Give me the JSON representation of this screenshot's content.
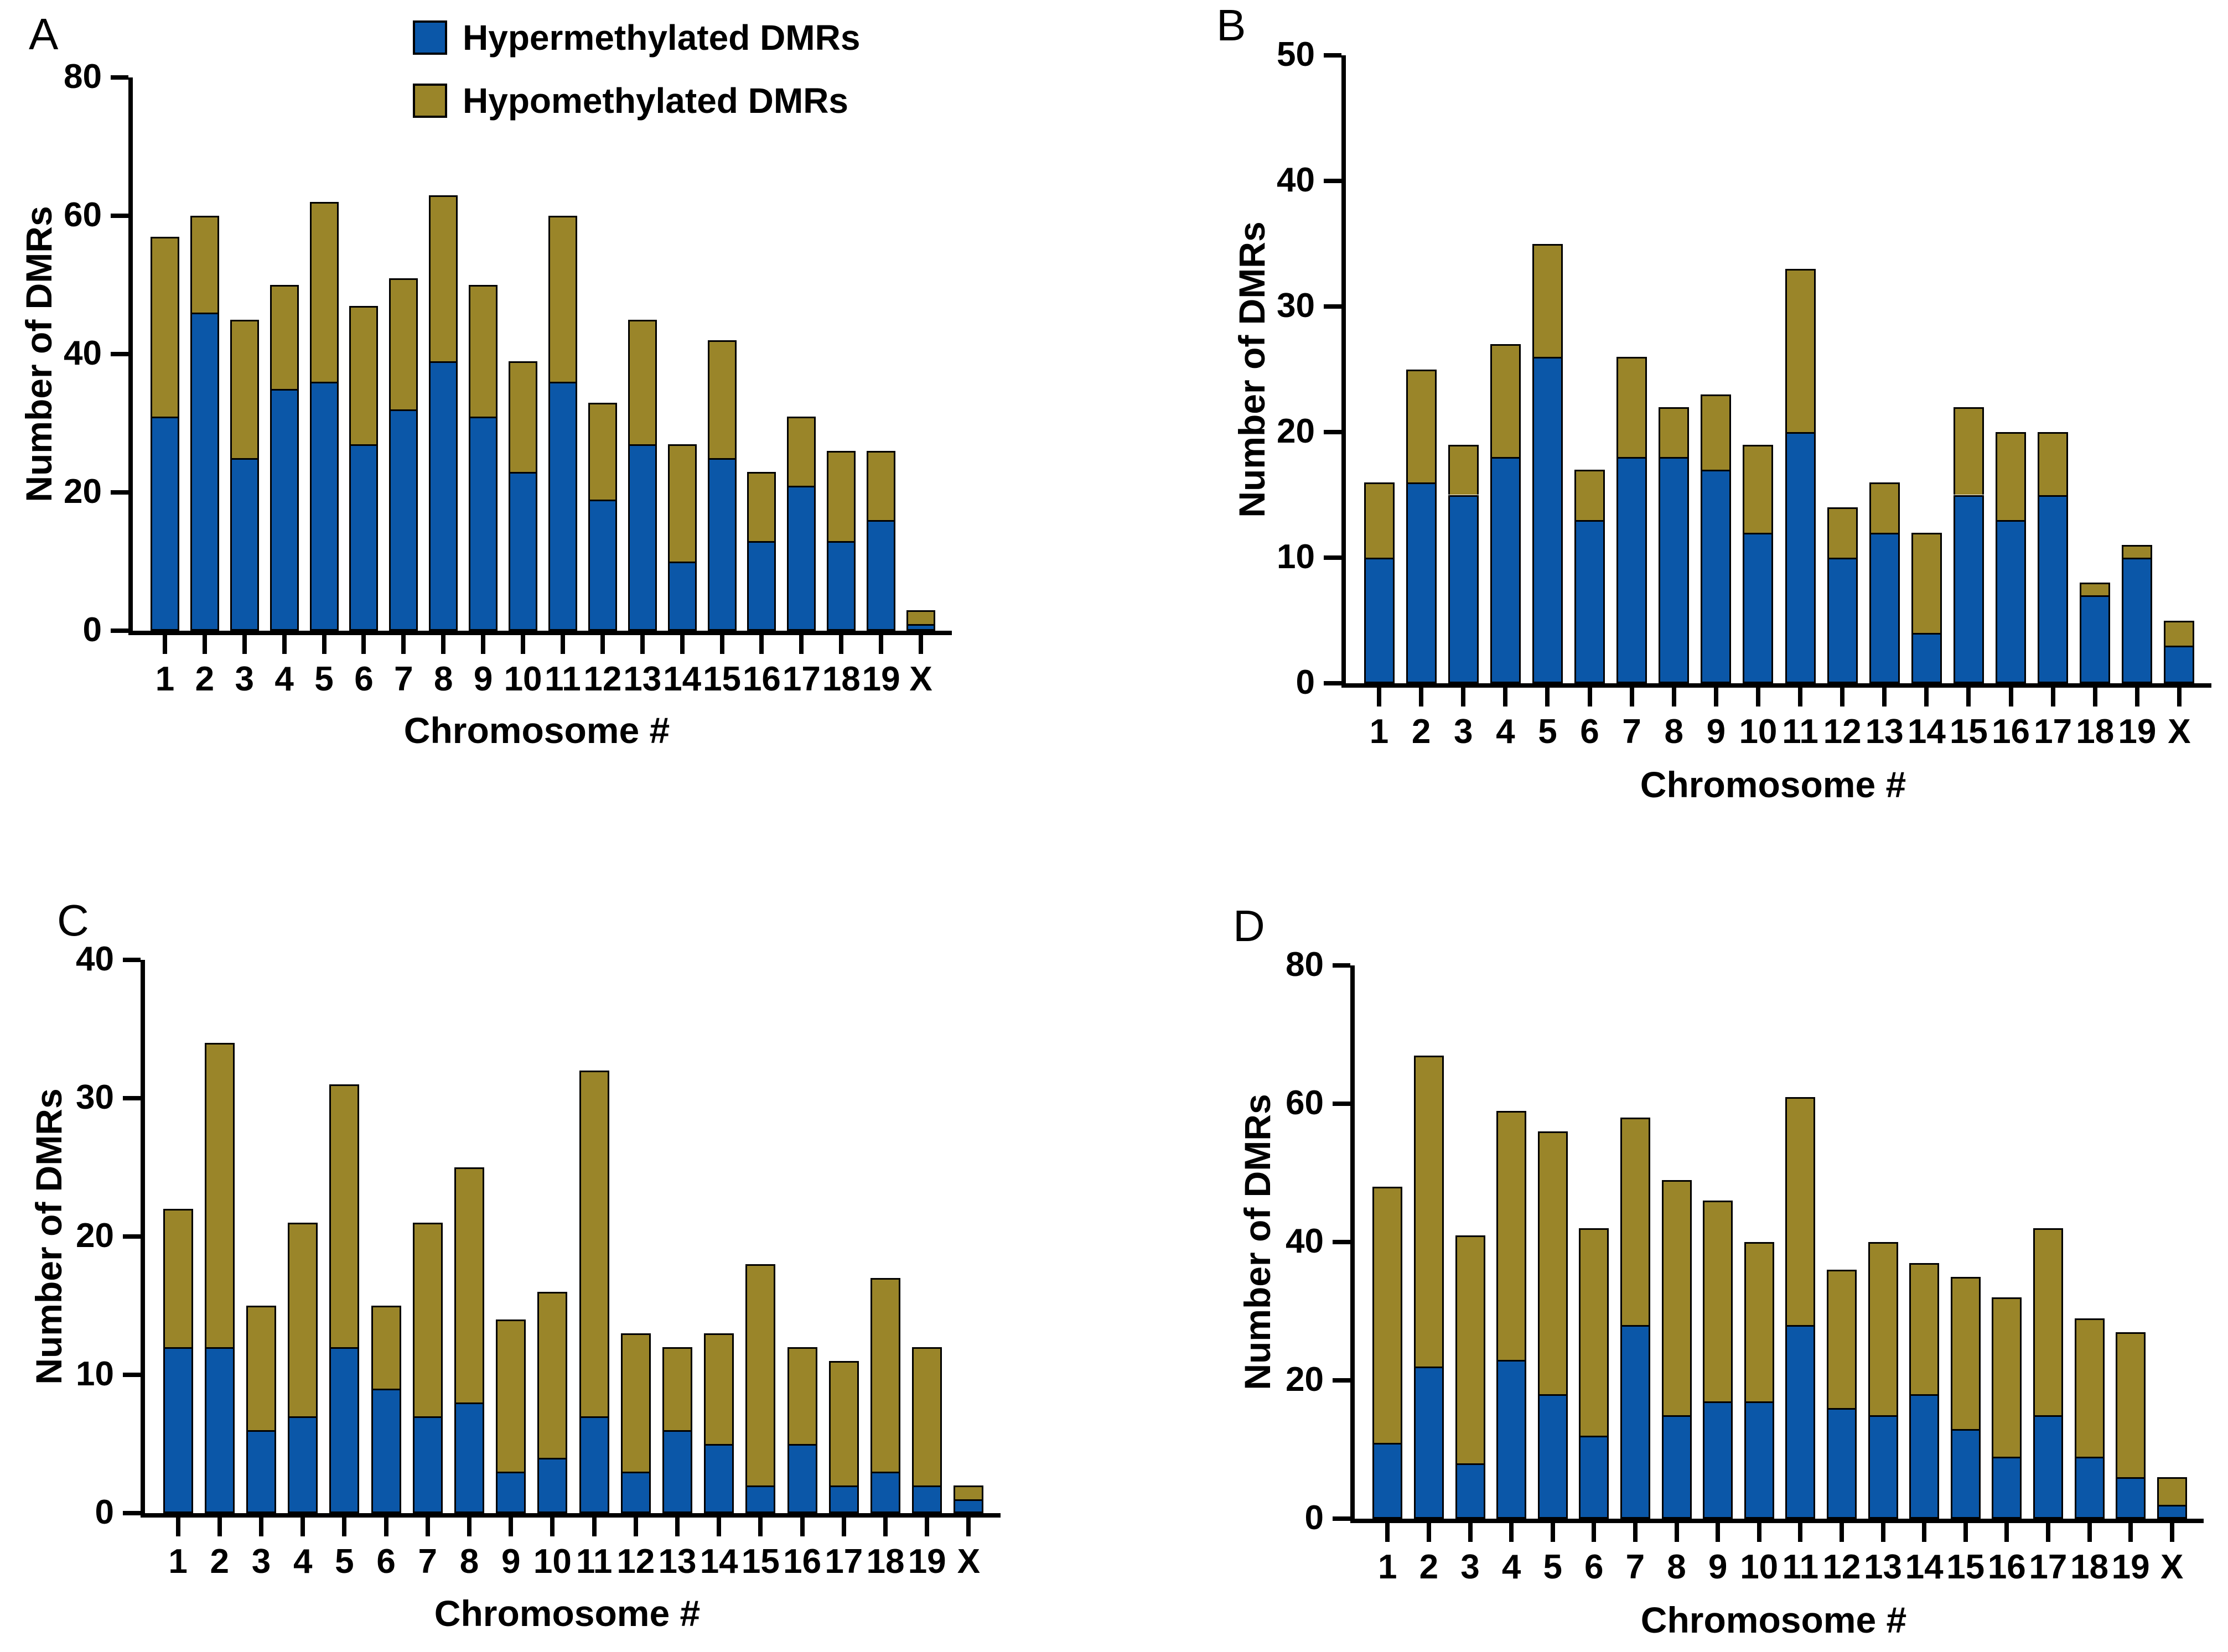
{
  "figure": {
    "ylabel": "Number of DMRs",
    "xlabel": "Chromosome #",
    "categories": [
      "1",
      "2",
      "3",
      "4",
      "5",
      "6",
      "7",
      "8",
      "9",
      "10",
      "11",
      "12",
      "13",
      "14",
      "15",
      "16",
      "17",
      "18",
      "19",
      "X"
    ],
    "legend": {
      "items": [
        {
          "label": "Hypermethylated DMRs",
          "color": "#0B57A8"
        },
        {
          "label": "Hypomethylated DMRs",
          "color": "#9A8529"
        }
      ]
    },
    "colors": {
      "hypermethylated": "#0B57A8",
      "hypomethylated": "#9A8529",
      "axis": "#000000"
    }
  },
  "chart_data": [
    {
      "panel": "A",
      "type": "bar",
      "stacked": true,
      "title": "",
      "xlabel": "Chromosome #",
      "ylabel": "Number of DMRs",
      "categories": [
        "1",
        "2",
        "3",
        "4",
        "5",
        "6",
        "7",
        "8",
        "9",
        "10",
        "11",
        "12",
        "13",
        "14",
        "15",
        "16",
        "17",
        "18",
        "19",
        "X"
      ],
      "ylim": [
        0,
        80
      ],
      "yticks": [
        0,
        20,
        40,
        60,
        80
      ],
      "grid": false,
      "legend_position": "top-center",
      "series": [
        {
          "name": "Hypermethylated DMRs",
          "color": "#0B57A8",
          "values": [
            31,
            46,
            25,
            35,
            36,
            27,
            32,
            39,
            31,
            23,
            36,
            19,
            27,
            10,
            25,
            13,
            21,
            13,
            16,
            1
          ]
        },
        {
          "name": "Hypomethylated DMRs",
          "color": "#9A8529",
          "values": [
            26,
            14,
            20,
            15,
            26,
            20,
            19,
            24,
            19,
            16,
            24,
            14,
            18,
            17,
            17,
            10,
            10,
            13,
            10,
            2
          ]
        }
      ],
      "totals": [
        57,
        60,
        45,
        50,
        62,
        47,
        51,
        63,
        50,
        39,
        60,
        33,
        45,
        27,
        42,
        23,
        31,
        26,
        26,
        3
      ]
    },
    {
      "panel": "B",
      "type": "bar",
      "stacked": true,
      "title": "",
      "xlabel": "Chromosome #",
      "ylabel": "Number of DMRs",
      "categories": [
        "1",
        "2",
        "3",
        "4",
        "5",
        "6",
        "7",
        "8",
        "9",
        "10",
        "11",
        "12",
        "13",
        "14",
        "15",
        "16",
        "17",
        "18",
        "19",
        "X"
      ],
      "ylim": [
        0,
        50
      ],
      "yticks": [
        0,
        10,
        20,
        30,
        40,
        50
      ],
      "grid": false,
      "series": [
        {
          "name": "Hypermethylated DMRs",
          "color": "#0B57A8",
          "values": [
            10,
            16,
            15,
            18,
            26,
            13,
            18,
            18,
            17,
            12,
            20,
            10,
            12,
            4,
            15,
            13,
            15,
            7,
            10,
            3
          ]
        },
        {
          "name": "Hypomethylated DMRs",
          "color": "#9A8529",
          "values": [
            6,
            9,
            4,
            9,
            9,
            4,
            8,
            4,
            6,
            7,
            13,
            4,
            4,
            8,
            7,
            7,
            5,
            1,
            1,
            2
          ]
        }
      ],
      "totals": [
        16,
        25,
        19,
        27,
        35,
        17,
        26,
        22,
        23,
        19,
        33,
        14,
        16,
        12,
        22,
        20,
        20,
        8,
        11,
        5
      ]
    },
    {
      "panel": "C",
      "type": "bar",
      "stacked": true,
      "title": "",
      "xlabel": "Chromosome #",
      "ylabel": "Number of DMRs",
      "categories": [
        "1",
        "2",
        "3",
        "4",
        "5",
        "6",
        "7",
        "8",
        "9",
        "10",
        "11",
        "12",
        "13",
        "14",
        "15",
        "16",
        "17",
        "18",
        "19",
        "X"
      ],
      "ylim": [
        0,
        40
      ],
      "yticks": [
        0,
        10,
        20,
        30,
        40
      ],
      "grid": false,
      "series": [
        {
          "name": "Hypermethylated DMRs",
          "color": "#0B57A8",
          "values": [
            12,
            12,
            6,
            7,
            12,
            9,
            7,
            8,
            3,
            4,
            7,
            3,
            6,
            5,
            2,
            5,
            2,
            3,
            2,
            1
          ]
        },
        {
          "name": "Hypomethylated DMRs",
          "color": "#9A8529",
          "values": [
            10,
            22,
            9,
            14,
            19,
            6,
            14,
            17,
            11,
            12,
            25,
            10,
            6,
            8,
            16,
            7,
            9,
            14,
            10,
            1
          ]
        }
      ],
      "totals": [
        22,
        34,
        15,
        21,
        31,
        15,
        21,
        25,
        14,
        16,
        32,
        13,
        12,
        13,
        18,
        12,
        11,
        17,
        12,
        2
      ]
    },
    {
      "panel": "D",
      "type": "bar",
      "stacked": true,
      "title": "",
      "xlabel": "Chromosome #",
      "ylabel": "Number of DMRs",
      "categories": [
        "1",
        "2",
        "3",
        "4",
        "5",
        "6",
        "7",
        "8",
        "9",
        "10",
        "11",
        "12",
        "13",
        "14",
        "15",
        "16",
        "17",
        "18",
        "19",
        "X"
      ],
      "ylim": [
        0,
        80
      ],
      "yticks": [
        0,
        20,
        40,
        60,
        80
      ],
      "grid": false,
      "series": [
        {
          "name": "Hypermethylated DMRs",
          "color": "#0B57A8",
          "values": [
            11,
            22,
            8,
            23,
            18,
            12,
            28,
            15,
            17,
            17,
            28,
            16,
            15,
            18,
            13,
            9,
            15,
            9,
            6,
            2
          ]
        },
        {
          "name": "Hypomethylated DMRs",
          "color": "#9A8529",
          "values": [
            37,
            45,
            33,
            36,
            38,
            30,
            30,
            34,
            29,
            23,
            33,
            20,
            25,
            19,
            22,
            23,
            27,
            20,
            21,
            4
          ]
        }
      ],
      "totals": [
        48,
        67,
        41,
        59,
        56,
        42,
        58,
        49,
        46,
        40,
        61,
        36,
        40,
        37,
        35,
        32,
        42,
        29,
        27,
        6
      ]
    }
  ]
}
